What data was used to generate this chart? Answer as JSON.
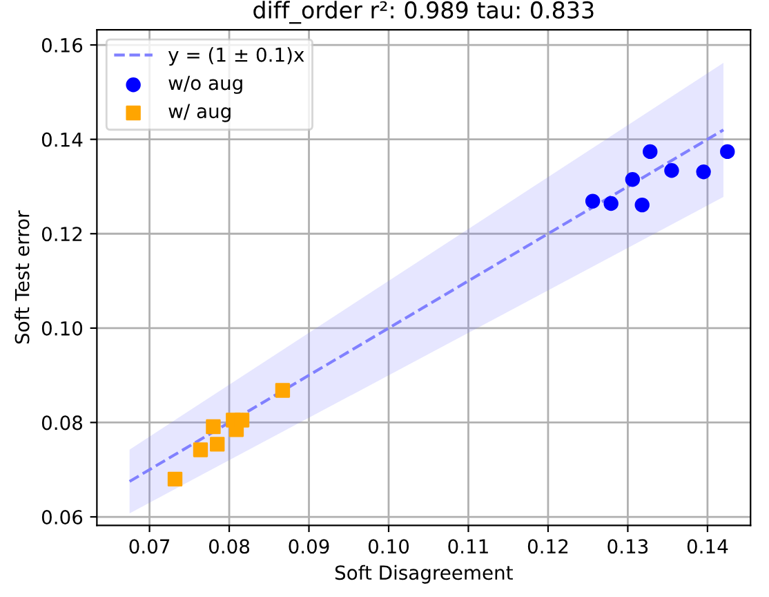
{
  "chart_data": {
    "type": "scatter",
    "title": "diff_order r²: 0.989 tau: 0.833",
    "xlabel": "Soft Disagreement",
    "ylabel": "Soft Test error",
    "xlim": [
      0.0634,
      0.1454
    ],
    "ylim": [
      0.0582,
      0.1632
    ],
    "xticks": [
      0.07,
      0.08,
      0.09,
      {
        "value": 0.1,
        "label": "0.10"
      },
      0.11,
      0.12,
      0.13,
      0.14
    ],
    "yticks": [
      0.06,
      0.08,
      {
        "value": 0.1,
        "label": "0.10"
      },
      0.12,
      0.14,
      0.16
    ],
    "grid": true,
    "legend": "top left",
    "series": [
      {
        "type": "line",
        "name": "y = (1 ± 0.1)x",
        "color": "#8080ff",
        "line_style": "dashed",
        "x": [
          0.0675,
          0.142
        ],
        "values": [
          0.0675,
          0.142
        ],
        "lower": [
          0.06075,
          0.1278
        ],
        "upper": [
          0.07425,
          0.1562
        ]
      },
      {
        "name": "w/o aug",
        "color": "#0000ff",
        "marker": "circle",
        "x": [
          0.1256,
          0.1279,
          0.1306,
          0.1318,
          0.1328,
          0.1355,
          0.1395,
          0.1425
        ],
        "values": [
          0.1269,
          0.1264,
          0.1315,
          0.1261,
          0.1374,
          0.1334,
          0.1331,
          0.1374
        ]
      },
      {
        "name": "w/ aug",
        "color": "#ffa500",
        "marker": "square",
        "x": [
          0.0732,
          0.0764,
          0.078,
          0.0785,
          0.0805,
          0.0809,
          0.0816,
          0.0867
        ],
        "values": [
          0.068,
          0.0742,
          0.0791,
          0.0754,
          0.0805,
          0.0785,
          0.0805,
          0.0868
        ]
      }
    ]
  }
}
